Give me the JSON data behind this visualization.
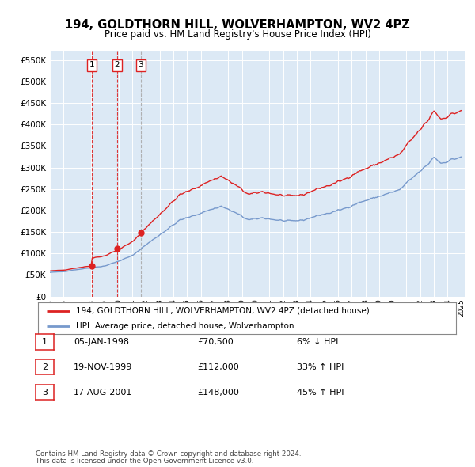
{
  "title": "194, GOLDTHORN HILL, WOLVERHAMPTON, WV2 4PZ",
  "subtitle": "Price paid vs. HM Land Registry's House Price Index (HPI)",
  "legend_line1": "194, GOLDTHORN HILL, WOLVERHAMPTON, WV2 4PZ (detached house)",
  "legend_line2": "HPI: Average price, detached house, Wolverhampton",
  "table_rows": [
    {
      "num": "1",
      "date": "05-JAN-1998",
      "price": "£70,500",
      "change": "6% ↓ HPI"
    },
    {
      "num": "2",
      "date": "19-NOV-1999",
      "price": "£112,000",
      "change": "33% ↑ HPI"
    },
    {
      "num": "3",
      "date": "17-AUG-2001",
      "price": "£148,000",
      "change": "45% ↑ HPI"
    }
  ],
  "footnote1": "Contains HM Land Registry data © Crown copyright and database right 2024.",
  "footnote2": "This data is licensed under the Open Government Licence v3.0.",
  "sale_color": "#dd2222",
  "hpi_color": "#7799cc",
  "sale_dates": [
    1998.04,
    1999.89,
    2001.63
  ],
  "sale_prices": [
    70500,
    112000,
    148000
  ],
  "ylim": [
    0,
    570000
  ],
  "yticks": [
    0,
    50000,
    100000,
    150000,
    200000,
    250000,
    300000,
    350000,
    400000,
    450000,
    500000,
    550000
  ],
  "background_color": "#ffffff",
  "plot_bg_color": "#dce9f5"
}
